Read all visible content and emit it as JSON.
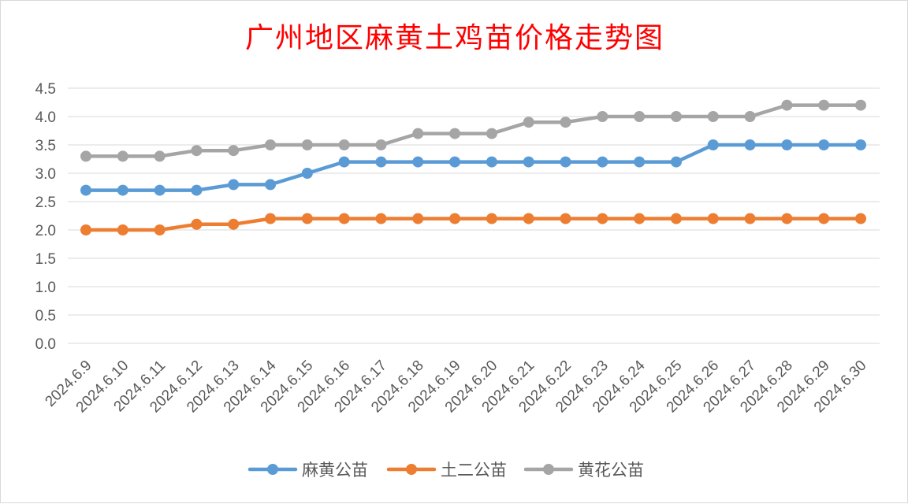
{
  "chart_data": {
    "type": "line",
    "title": "广州地区麻黄土鸡苗价格走势图",
    "categories": [
      "2024.6.9",
      "2024.6.10",
      "2024.6.11",
      "2024.6.12",
      "2024.6.13",
      "2024.6.14",
      "2024.6.15",
      "2024.6.16",
      "2024.6.17",
      "2024.6.18",
      "2024.6.19",
      "2024.6.20",
      "2024.6.21",
      "2024.6.22",
      "2024.6.23",
      "2024.6.24",
      "2024.6.25",
      "2024.6.26",
      "2024.6.27",
      "2024.6.28",
      "2024.6.29",
      "2024.6.30"
    ],
    "series": [
      {
        "name": "麻黄公苗",
        "color": "#5b9bd5",
        "values": [
          2.7,
          2.7,
          2.7,
          2.7,
          2.8,
          2.8,
          3.0,
          3.2,
          3.2,
          3.2,
          3.2,
          3.2,
          3.2,
          3.2,
          3.2,
          3.2,
          3.2,
          3.5,
          3.5,
          3.5,
          3.5,
          3.5
        ]
      },
      {
        "name": "土二公苗",
        "color": "#ed7d31",
        "values": [
          2.0,
          2.0,
          2.0,
          2.1,
          2.1,
          2.2,
          2.2,
          2.2,
          2.2,
          2.2,
          2.2,
          2.2,
          2.2,
          2.2,
          2.2,
          2.2,
          2.2,
          2.2,
          2.2,
          2.2,
          2.2,
          2.2
        ]
      },
      {
        "name": "黄花公苗",
        "color": "#a5a5a5",
        "values": [
          3.3,
          3.3,
          3.3,
          3.4,
          3.4,
          3.5,
          3.5,
          3.5,
          3.5,
          3.7,
          3.7,
          3.7,
          3.9,
          3.9,
          4.0,
          4.0,
          4.0,
          4.0,
          4.0,
          4.2,
          4.2,
          4.2
        ]
      }
    ],
    "yticks": [
      "0.0",
      "0.5",
      "1.0",
      "1.5",
      "2.0",
      "2.5",
      "3.0",
      "3.5",
      "4.0",
      "4.5"
    ],
    "ylim": [
      0,
      4.5
    ],
    "grid": true,
    "legend": "bottom"
  }
}
